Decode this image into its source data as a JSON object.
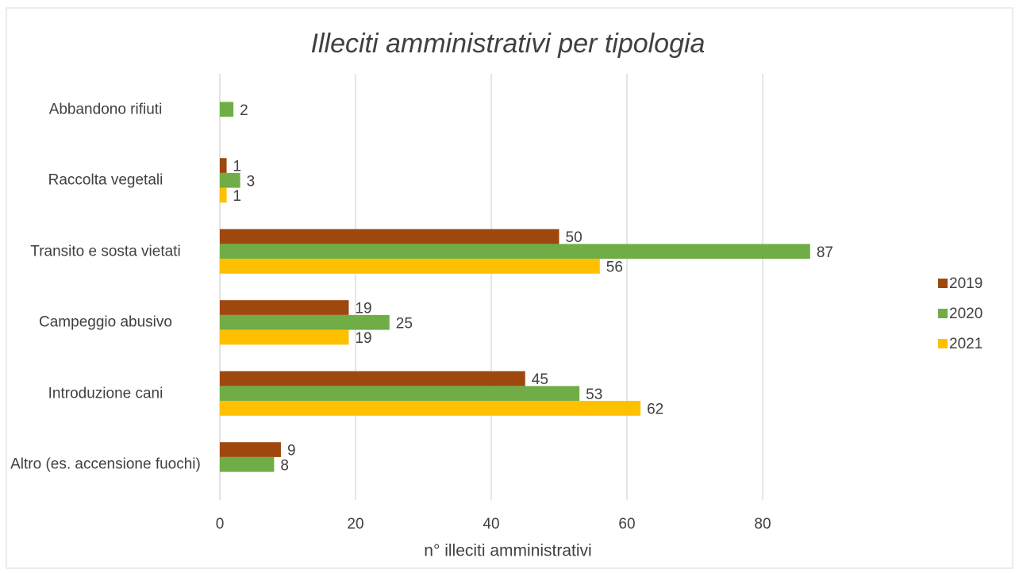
{
  "chart_data": {
    "type": "hbar",
    "title": "Illeciti amministrativi per tipologia",
    "x_label": "n° illeciti amministrativi",
    "categories": [
      "Abbandono rifiuti",
      "Raccolta vegetali",
      "Transito e sosta vietati",
      "Campeggio abusivo",
      "Introduzione cani",
      "Altro (es. accensione fuochi)"
    ],
    "series": [
      {
        "name": "2019",
        "color": "#9e480e",
        "values": [
          null,
          1,
          50,
          19,
          45,
          9
        ]
      },
      {
        "name": "2020",
        "color": "#70ad47",
        "values": [
          2,
          3,
          87,
          25,
          53,
          8
        ]
      },
      {
        "name": "2021",
        "color": "#ffc000",
        "values": [
          null,
          1,
          56,
          19,
          62,
          null
        ]
      }
    ],
    "xlim": [
      0,
      90
    ],
    "xticks": [
      0,
      20,
      40,
      60,
      80
    ],
    "grid": true,
    "legend": "right"
  }
}
